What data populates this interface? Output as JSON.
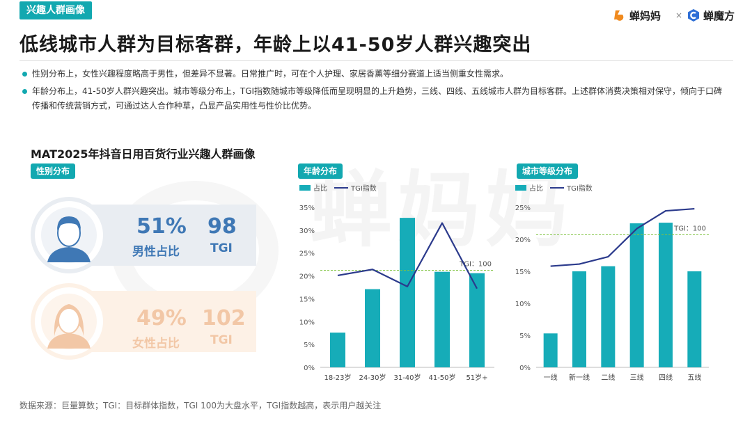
{
  "header": {
    "tag": "兴趣人群画像",
    "brand_left": "蝉妈妈",
    "brand_sep": "×",
    "brand_right": "蝉魔方"
  },
  "title": "低线城市人群为目标客群，年龄上以41-50岁人群兴趣突出",
  "bullets": [
    "性别分布上，女性兴趣程度略高于男性，但差异不显著。日常推广时，可在个人护理、家居香薰等细分赛道上适当侧重女性需求。",
    "年龄分布上，41-50岁人群兴趣突出。城市等级分布上，TGI指数随城市等级降低而呈现明显的上升趋势，三线、四线、五线城市人群为目标客群。上述群体消费决策相对保守，倾向于口碑传播和传统营销方式，可通过达人合作种草，凸显产品实用性与性价比优势。"
  ],
  "chart_heading": "MAT2025年抖音日用百货行业兴趣人群画像",
  "watermark": "蝉妈妈",
  "gender": {
    "tag": "性别分布",
    "male": {
      "pct": "51%",
      "label": "男性占比",
      "tgi": "98",
      "tgi_label": "TGI"
    },
    "female": {
      "pct": "49%",
      "label": "女性占比",
      "tgi": "102",
      "tgi_label": "TGI"
    },
    "colors": {
      "male": "#3f78b5",
      "male_bg": "#e9edf2",
      "female": "#f2c7a6",
      "female_bg": "#fdf1e6"
    }
  },
  "chart_data": [
    {
      "type": "bar",
      "tag": "年龄分布",
      "legend": {
        "bar": "占比",
        "line": "TGI指数"
      },
      "categories": [
        "18-23岁",
        "24-30岁",
        "31-40岁",
        "41-50岁",
        "51岁+"
      ],
      "series": [
        {
          "name": "占比",
          "type": "bar",
          "values": [
            7.6,
            17.1,
            32.7,
            20.9,
            20.6
          ],
          "color": "#16acb8"
        },
        {
          "name": "TGI指数",
          "type": "line",
          "values": [
            95,
            101,
            84,
            147,
            82
          ],
          "color": "#2b3a8c"
        }
      ],
      "y_ticks": [
        "0%",
        "5%",
        "10%",
        "15%",
        "20%",
        "25%",
        "30%",
        "35%"
      ],
      "ylim": [
        0,
        35
      ],
      "reference_line": {
        "label": "TGI：100",
        "y_pct": 21.2,
        "color": "#7fc241"
      }
    },
    {
      "type": "bar",
      "tag": "城市等级分布",
      "legend": {
        "bar": "占比",
        "line": "TGI指数"
      },
      "categories": [
        "一线",
        "新一线",
        "二线",
        "三线",
        "四线",
        "五线"
      ],
      "series": [
        {
          "name": "占比",
          "type": "bar",
          "values": [
            5.3,
            15.0,
            15.8,
            22.5,
            22.6,
            15.0
          ],
          "color": "#16acb8"
        },
        {
          "name": "TGI指数",
          "type": "line",
          "values": [
            70,
            72,
            79,
            106,
            123,
            125
          ],
          "color": "#2b3a8c"
        }
      ],
      "y_ticks": [
        "0%",
        "5%",
        "10%",
        "15%",
        "20%",
        "25%"
      ],
      "ylim": [
        0,
        25
      ],
      "reference_line": {
        "label": "TGI：100",
        "y_pct": 20.7,
        "color": "#7fc241"
      }
    }
  ],
  "footer": "数据来源：巨量算数；TGI：目标群体指数，TGI 100为大盘水平，TGI指数越高，表示用户越关注"
}
